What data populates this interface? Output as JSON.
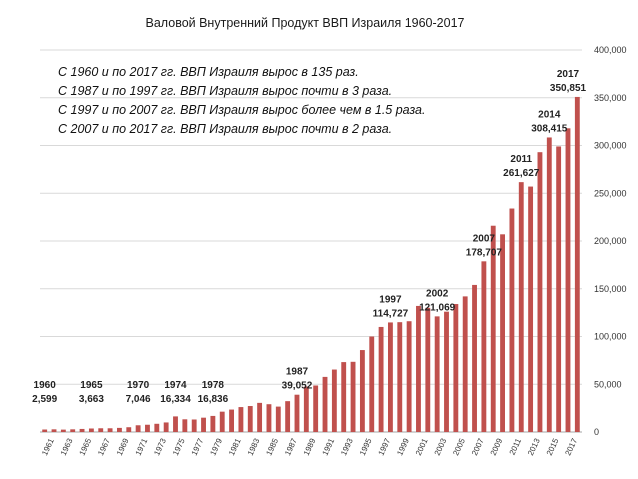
{
  "chart_data": {
    "type": "bar",
    "title": "Валовой Внутренний Продукт ВВП Израиля 1960-2017",
    "notes": [
      "С 1960 и по 2017 гг. ВВП Израиля вырос в 135 раз.",
      "С 1987 и по 1997 гг. ВВП Израиля вырос почти в 3 раза.",
      "С 1997 и по 2007 гг. ВВП Израиля вырос более чем в 1.5 раза.",
      "С 2007 и по 2017 гг. ВВП Израиля вырос почти в 2 раза."
    ],
    "color": "#C0504D",
    "ylim": [
      0,
      400000
    ],
    "yticks": [
      "0",
      "50,000",
      "100,000",
      "150,000",
      "200,000",
      "250,000",
      "300,000",
      "350,000",
      "400,000"
    ],
    "ytick_values": [
      0,
      50000,
      100000,
      150000,
      200000,
      250000,
      300000,
      350000,
      400000
    ],
    "y_axis_side": "right",
    "grid": true,
    "categories": [
      "1960",
      "1961",
      "1962",
      "1963",
      "1964",
      "1965",
      "1966",
      "1967",
      "1968",
      "1969",
      "1970",
      "1971",
      "1972",
      "1973",
      "1974",
      "1975",
      "1976",
      "1977",
      "1978",
      "1979",
      "1980",
      "1981",
      "1982",
      "1983",
      "1984",
      "1985",
      "1986",
      "1987",
      "1988",
      "1989",
      "1990",
      "1991",
      "1992",
      "1993",
      "1994",
      "1995",
      "1996",
      "1997",
      "1998",
      "1999",
      "2000",
      "2001",
      "2002",
      "2003",
      "2004",
      "2005",
      "2006",
      "2007",
      "2008",
      "2009",
      "2010",
      "2011",
      "2012",
      "2013",
      "2014",
      "2015",
      "2016",
      "2017"
    ],
    "xtick_labels": [
      "1961",
      "1963",
      "1965",
      "1967",
      "1969",
      "1971",
      "1973",
      "1975",
      "1977",
      "1979",
      "1981",
      "1983",
      "1985",
      "1987",
      "1989",
      "1991",
      "1993",
      "1995",
      "1997",
      "1999",
      "2001",
      "2003",
      "2005",
      "2007",
      "2009",
      "2011",
      "2013",
      "2015",
      "2017"
    ],
    "values": [
      2599,
      2800,
      2500,
      2800,
      3200,
      3663,
      3900,
      3900,
      4300,
      5000,
      7046,
      7600,
      8600,
      10000,
      16334,
      13300,
      13100,
      15000,
      16836,
      21300,
      23500,
      26100,
      27200,
      30500,
      29100,
      26600,
      32300,
      39052,
      47600,
      48700,
      57700,
      65400,
      73200,
      73500,
      85800,
      100000,
      110000,
      114727,
      115000,
      116000,
      132000,
      130000,
      121069,
      126000,
      134000,
      142000,
      154000,
      178707,
      216000,
      207000,
      234000,
      261627,
      257000,
      293000,
      308415,
      299000,
      318000,
      350851
    ],
    "annotations": [
      {
        "year": "1960",
        "value": "2,599"
      },
      {
        "year": "1965",
        "value": "3,663"
      },
      {
        "year": "1970",
        "value": "7,046"
      },
      {
        "year": "1974",
        "value": "16,334"
      },
      {
        "year": "1978",
        "value": "16,836"
      },
      {
        "year": "1987",
        "value": "39,052"
      },
      {
        "year": "1997",
        "value": "114,727"
      },
      {
        "year": "2002",
        "value": "121,069"
      },
      {
        "year": "2007",
        "value": "178,707"
      },
      {
        "year": "2011",
        "value": "261,627"
      },
      {
        "year": "2014",
        "value": "308,415"
      },
      {
        "year": "2017",
        "value": "350,851"
      }
    ]
  }
}
